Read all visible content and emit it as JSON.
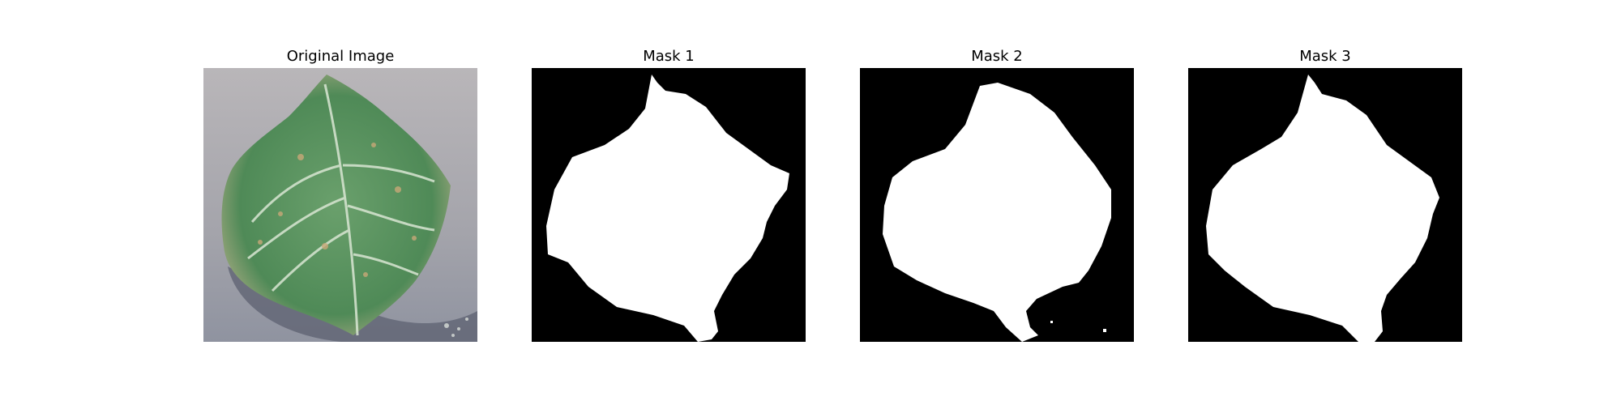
{
  "figure": {
    "panels": [
      {
        "title": "Original Image"
      },
      {
        "title": "Mask 1"
      },
      {
        "title": "Mask 2"
      },
      {
        "title": "Mask 3"
      }
    ]
  },
  "colors": {
    "background": "#ffffff",
    "mask_background": "#000000",
    "mask_foreground": "#ffffff",
    "leaf_green": "#5e9a62",
    "surface_gray": "#9a9aa0"
  }
}
